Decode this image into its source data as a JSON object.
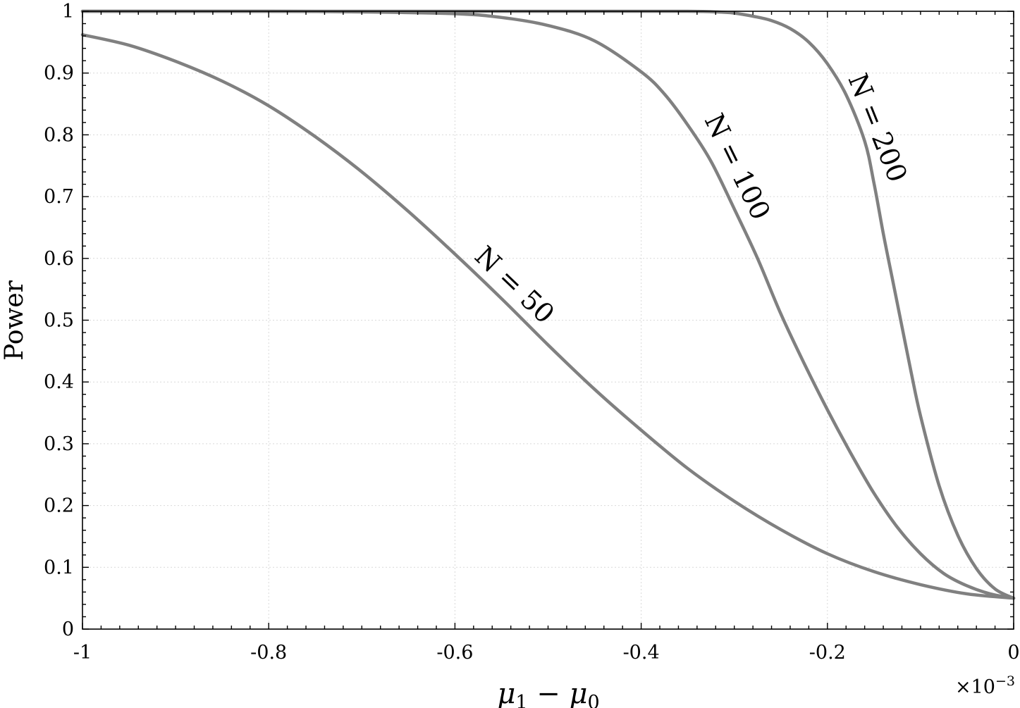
{
  "chart_data": {
    "type": "line",
    "title": "",
    "xlabel": "μ1 − μ0",
    "ylabel": "Power",
    "x_exponent_label": "×10−3",
    "xlim": [
      -1,
      0
    ],
    "ylim": [
      0,
      1
    ],
    "grid": true,
    "x_ticks": [
      -1,
      -0.8,
      -0.6,
      -0.4,
      -0.2,
      0
    ],
    "x_tick_labels": [
      "-1",
      "-0.8",
      "-0.6",
      "-0.4",
      "-0.2",
      "0"
    ],
    "y_ticks": [
      0,
      0.1,
      0.2,
      0.3,
      0.4,
      0.5,
      0.6,
      0.7,
      0.8,
      0.9,
      1
    ],
    "y_tick_labels": [
      "0",
      "0.1",
      "0.2",
      "0.3",
      "0.4",
      "0.5",
      "0.6",
      "0.7",
      "0.8",
      "0.9",
      "1"
    ],
    "color": "#808080",
    "series": [
      {
        "name": "N = 50",
        "x": [
          -1,
          -0.95,
          -0.9,
          -0.85,
          -0.8,
          -0.75,
          -0.7,
          -0.65,
          -0.6,
          -0.55,
          -0.5,
          -0.45,
          -0.4,
          -0.35,
          -0.3,
          -0.25,
          -0.2,
          -0.15,
          -0.1,
          -0.05,
          0
        ],
        "y": [
          0.962,
          0.945,
          0.919,
          0.887,
          0.847,
          0.797,
          0.74,
          0.676,
          0.607,
          0.535,
          0.46,
          0.388,
          0.322,
          0.26,
          0.207,
          0.161,
          0.122,
          0.093,
          0.072,
          0.057,
          0.05
        ]
      },
      {
        "name": "N = 100",
        "x": [
          -1,
          -0.9,
          -0.8,
          -0.7,
          -0.6,
          -0.55,
          -0.5,
          -0.45,
          -0.4,
          -0.375,
          -0.35,
          -0.325,
          -0.3,
          -0.275,
          -0.25,
          -0.225,
          -0.2,
          -0.175,
          -0.15,
          -0.125,
          -0.1,
          -0.075,
          -0.05,
          -0.025,
          0
        ],
        "y": [
          1.0,
          1.0,
          1.0,
          0.999,
          0.996,
          0.99,
          0.977,
          0.952,
          0.902,
          0.866,
          0.816,
          0.757,
          0.68,
          0.6,
          0.51,
          0.43,
          0.355,
          0.285,
          0.22,
          0.165,
          0.122,
          0.09,
          0.07,
          0.057,
          0.05
        ]
      },
      {
        "name": "N = 200",
        "x": [
          -1,
          -0.8,
          -0.6,
          -0.4,
          -0.35,
          -0.32,
          -0.3,
          -0.28,
          -0.26,
          -0.24,
          -0.22,
          -0.2,
          -0.18,
          -0.16,
          -0.15,
          -0.14,
          -0.13,
          -0.12,
          -0.11,
          -0.1,
          -0.08,
          -0.06,
          -0.04,
          -0.02,
          0
        ],
        "y": [
          1.0,
          1.0,
          1.0,
          1.0,
          1.0,
          0.999,
          0.997,
          0.992,
          0.985,
          0.972,
          0.95,
          0.915,
          0.865,
          0.79,
          0.722,
          0.64,
          0.565,
          0.49,
          0.415,
          0.345,
          0.232,
          0.152,
          0.098,
          0.065,
          0.05
        ]
      }
    ],
    "curve_labels": [
      {
        "text": "N = 50",
        "series": "N = 50"
      },
      {
        "text": "N = 100",
        "series": "N = 100"
      },
      {
        "text": "N = 200",
        "series": "N = 200"
      }
    ]
  }
}
